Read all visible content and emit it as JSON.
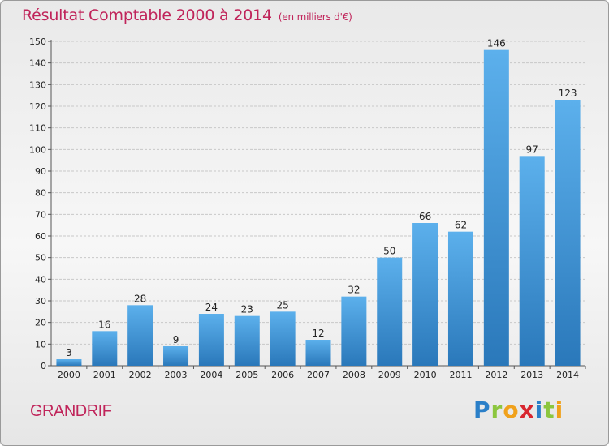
{
  "title": {
    "main": "Résultat Comptable 2000 à 2014",
    "unit": "(en milliers d'€)"
  },
  "place_name": "GRANDRIF",
  "logo": {
    "text": "Proxiti",
    "letters": [
      {
        "ch": "P",
        "color": "#2a7fc8"
      },
      {
        "ch": "r",
        "color": "#8cc63e"
      },
      {
        "ch": "o",
        "color": "#f0a11b"
      },
      {
        "ch": "x",
        "color": "#d8262f"
      },
      {
        "ch": "i",
        "color": "#2a7fc8"
      },
      {
        "ch": "t",
        "color": "#8cc63e"
      },
      {
        "ch": "i",
        "color": "#f0a11b"
      }
    ]
  },
  "colors": {
    "title": "#c0245a",
    "bar_top": "#5cb0ec",
    "bar_bottom": "#2a78ba",
    "grid": "#c8c8c8"
  },
  "chart_data": {
    "type": "bar",
    "title": "Résultat Comptable 2000 à 2014",
    "xlabel": "",
    "ylabel": "",
    "categories": [
      "2000",
      "2001",
      "2002",
      "2003",
      "2004",
      "2005",
      "2006",
      "2007",
      "2008",
      "2009",
      "2010",
      "2011",
      "2012",
      "2013",
      "2014"
    ],
    "values": [
      3,
      16,
      28,
      9,
      24,
      23,
      25,
      12,
      32,
      50,
      66,
      62,
      146,
      97,
      123
    ],
    "ylim": [
      0,
      150
    ],
    "yticks": [
      0,
      10,
      20,
      30,
      40,
      50,
      60,
      70,
      80,
      90,
      100,
      110,
      120,
      130,
      140,
      150
    ],
    "grid": true,
    "data_labels": true
  }
}
